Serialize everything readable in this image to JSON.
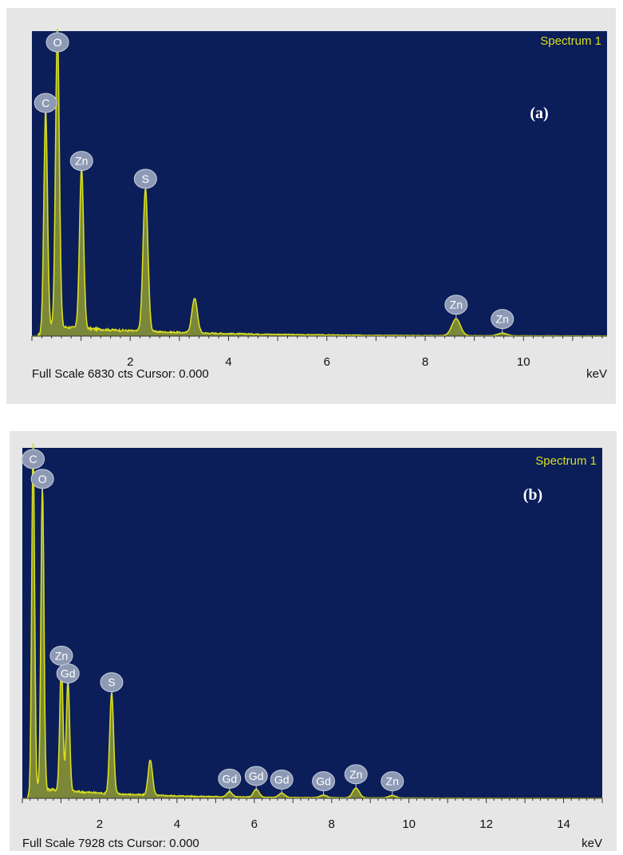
{
  "chart_data": [
    {
      "panel_label": "(a)",
      "type": "line",
      "title": "Spectrum 1",
      "xlabel": "keV",
      "footer": "Full Scale 6830 cts Cursor: 0.000",
      "xlim": [
        0,
        11.7
      ],
      "ylim": [
        0,
        6830
      ],
      "x_ticks": [
        2,
        4,
        6,
        8,
        10
      ],
      "background_color": "#0b1e59",
      "line_color": "#d9de1f",
      "peaks": [
        {
          "label": "C",
          "x": 0.28,
          "y": 4900
        },
        {
          "label": "O",
          "x": 0.52,
          "y": 6700
        },
        {
          "label": "Zn",
          "x": 1.01,
          "y": 3600
        },
        {
          "label": "S",
          "x": 2.31,
          "y": 3200
        },
        {
          "label": "",
          "x": 3.31,
          "y": 780
        },
        {
          "label": "Zn",
          "x": 8.63,
          "y": 380
        },
        {
          "label": "Zn",
          "x": 9.57,
          "y": 60
        }
      ]
    },
    {
      "panel_label": "(b)",
      "type": "line",
      "title": "Spectrum 1",
      "xlabel": "keV",
      "footer": "Full Scale 7928 cts Cursor: 0.000",
      "xlim": [
        0,
        15
      ],
      "ylim": [
        0,
        7928
      ],
      "x_ticks": [
        2,
        4,
        6,
        8,
        10,
        12,
        14
      ],
      "background_color": "#0b1e59",
      "line_color": "#d9de1f",
      "peaks": [
        {
          "label": "C",
          "x": 0.28,
          "y": 7900
        },
        {
          "label": "O",
          "x": 0.52,
          "y": 6900
        },
        {
          "label": "Zn",
          "x": 1.01,
          "y": 2900
        },
        {
          "label": "Gd",
          "x": 1.18,
          "y": 2500
        },
        {
          "label": "S",
          "x": 2.31,
          "y": 2300
        },
        {
          "label": "",
          "x": 3.31,
          "y": 800
        },
        {
          "label": "Gd",
          "x": 5.36,
          "y": 120
        },
        {
          "label": "Gd",
          "x": 6.05,
          "y": 180
        },
        {
          "label": "Gd",
          "x": 6.71,
          "y": 100
        },
        {
          "label": "Gd",
          "x": 7.79,
          "y": 60
        },
        {
          "label": "Zn",
          "x": 8.63,
          "y": 220
        },
        {
          "label": "Zn",
          "x": 9.57,
          "y": 60
        }
      ]
    }
  ]
}
